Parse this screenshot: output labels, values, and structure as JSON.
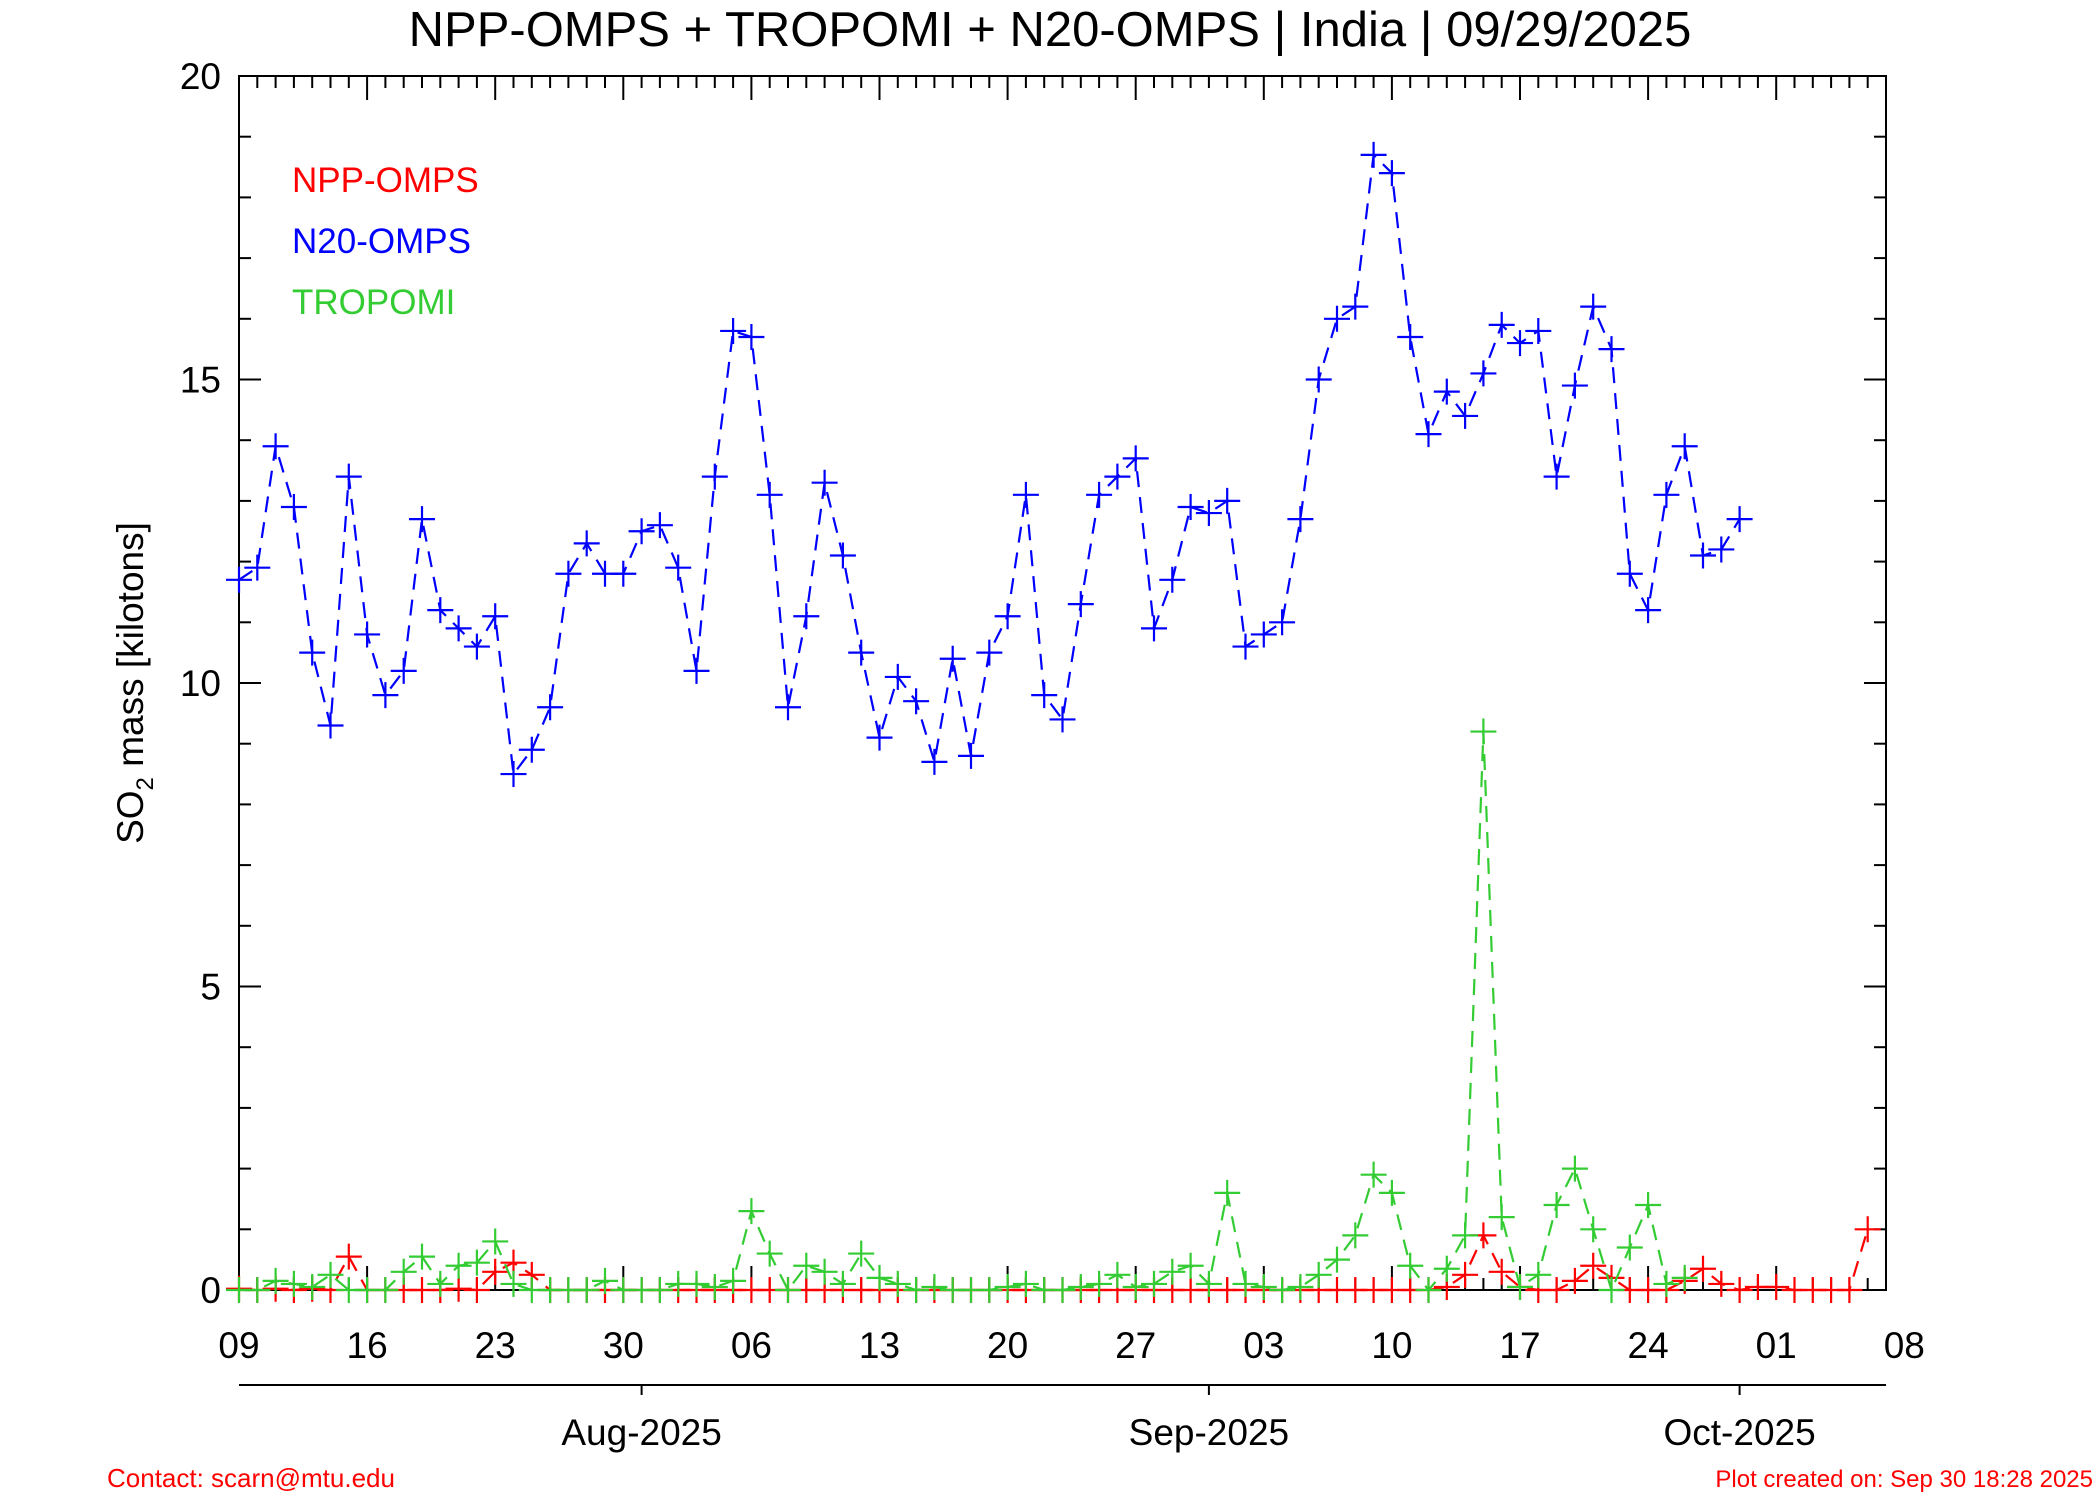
{
  "chart_data": {
    "type": "line",
    "title": "NPP-OMPS + TROPOMI + N20-OMPS | India | 09/29/2025",
    "ylabel": {
      "prefix": "SO",
      "subscript": "2",
      "suffix": " mass [kilotons]"
    },
    "ylim": [
      0,
      20
    ],
    "y_ticks": [
      "0",
      "5",
      "10",
      "15",
      "20"
    ],
    "xlim_days": [
      0,
      90
    ],
    "x_tick_labels": [
      "09",
      "16",
      "23",
      "30",
      "06",
      "13",
      "20",
      "27",
      "03",
      "10",
      "17",
      "24",
      "01",
      "08"
    ],
    "month_labels": [
      {
        "label": "Aug-2025",
        "day": 22
      },
      {
        "label": "Sep-2025",
        "day": 53
      },
      {
        "label": "Oct-2025",
        "day": 82
      }
    ],
    "x_start_date": "2025-07-09",
    "legend_position": "top-left",
    "series": [
      {
        "name": "NPP-OMPS",
        "color": "#ff0000",
        "values": [
          0.02,
          0,
          0.02,
          0,
          0.02,
          0,
          0.55,
          0,
          0,
          0,
          0,
          0,
          0.02,
          0,
          0.3,
          0.45,
          0.25,
          0,
          0,
          0,
          0,
          0,
          0,
          0,
          0,
          0,
          0,
          0,
          0,
          0,
          0,
          0,
          0,
          0,
          0,
          0,
          0,
          0,
          0,
          0,
          0,
          0,
          0,
          0,
          0,
          0,
          0,
          0,
          0,
          0,
          0,
          0,
          0,
          0,
          0,
          0,
          0,
          0,
          0,
          0,
          0,
          0,
          0,
          0,
          0,
          0,
          0.05,
          0.25,
          0.9,
          0.3,
          0.05,
          0,
          0,
          0.15,
          0.4,
          0.2,
          0,
          0,
          0,
          0.15,
          0.35,
          0.1,
          0,
          0.05,
          0.05,
          0,
          0,
          0,
          0,
          1.0
        ],
        "start_day": 0
      },
      {
        "name": "N20-OMPS",
        "color": "#0000ff",
        "values": [
          11.7,
          11.9,
          13.9,
          12.9,
          10.5,
          9.3,
          13.4,
          10.8,
          9.8,
          10.2,
          12.7,
          11.2,
          10.9,
          10.6,
          11.1,
          8.5,
          8.9,
          9.6,
          11.8,
          12.3,
          11.8,
          11.8,
          12.5,
          12.6,
          11.9,
          10.2,
          13.4,
          15.8,
          15.7,
          13.1,
          9.6,
          11.1,
          13.3,
          12.1,
          10.5,
          9.1,
          10.1,
          9.7,
          8.7,
          10.4,
          8.8,
          10.5,
          11.1,
          13.1,
          9.8,
          9.4,
          11.3,
          13.1,
          13.4,
          13.7,
          10.9,
          11.7,
          12.9,
          12.8,
          13.0,
          10.6,
          10.8,
          11.0,
          12.7,
          15.0,
          16.0,
          16.2,
          18.7,
          18.4,
          15.7,
          14.1,
          14.8,
          14.4,
          15.1,
          15.9,
          15.6,
          15.8,
          13.4,
          14.9,
          16.2,
          15.5,
          11.8,
          11.2,
          13.1,
          13.9,
          12.1,
          12.2,
          12.7
        ],
        "start_day": 0
      },
      {
        "name": "TROPOMI",
        "color": "#33cc33",
        "values": [
          0,
          0,
          0.15,
          0.1,
          0.05,
          0.25,
          0,
          0,
          0,
          0.3,
          0.55,
          0.1,
          0.4,
          0.45,
          0.8,
          0.1,
          0,
          0,
          0,
          0,
          0.15,
          0,
          0,
          0,
          0.1,
          0.1,
          0.05,
          0.15,
          1.3,
          0.6,
          0,
          0.4,
          0.3,
          0.1,
          0.6,
          0.2,
          0.1,
          0,
          0.05,
          0,
          0,
          0,
          0.05,
          0.1,
          0,
          0,
          0.05,
          0.1,
          0.25,
          0.05,
          0.1,
          0.3,
          0.4,
          0.1,
          1.6,
          0.1,
          0.05,
          0,
          0.05,
          0.25,
          0.5,
          0.9,
          1.9,
          1.6,
          0.4,
          0,
          0.35,
          0.9,
          9.2,
          1.2,
          0.05,
          0.25,
          1.4,
          2.0,
          1.0,
          0,
          0.7,
          1.4,
          0.1,
          0.2
        ],
        "start_day": 0
      }
    ]
  },
  "footer": {
    "contact": "Contact: scarn@mtu.edu",
    "created": "Plot created on: Sep 30 18:28 2025"
  }
}
